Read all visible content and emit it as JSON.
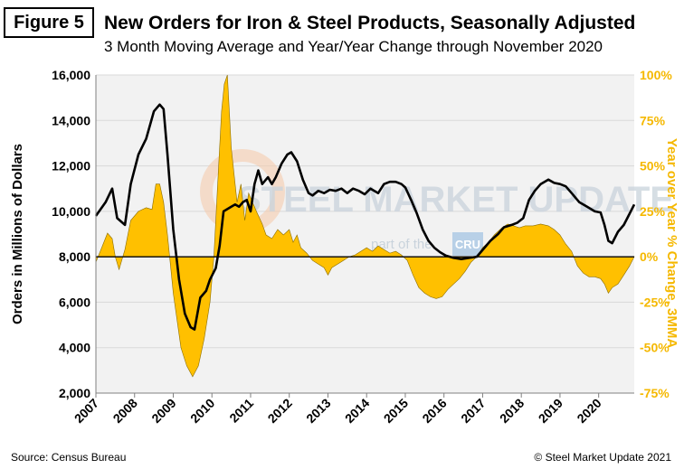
{
  "figure_label": "Figure 5",
  "title": "New Orders for Iron & Steel Products, Seasonally Adjusted",
  "subtitle": "3 Month Moving Average and Year/Year Change through November 2020",
  "source": "Source: Census Bureau",
  "copyright": "© Steel Market Update 2021",
  "watermark": {
    "main": "STEEL MARKET UPDATE",
    "sub_left": "part of the",
    "badge": "CRU",
    "sub_right": "Group"
  },
  "colors": {
    "line": "#000000",
    "area": "#FFC000",
    "right_axis": "#F5B800",
    "grid": "#d9d9d9",
    "plot_bg": "#f2f2f2"
  },
  "chart_data": {
    "type": "line+area",
    "xlabel": "",
    "ylabel": "Orders in Millions of Dollars",
    "y2label": "Year over Year % Change, 3MMA",
    "ylim": [
      2000,
      16000
    ],
    "y_ticks": [
      "2,000",
      "4,000",
      "6,000",
      "8,000",
      "10,000",
      "12,000",
      "14,000",
      "16,000"
    ],
    "y2lim": [
      -75,
      100
    ],
    "y2_ticks": [
      "-75%",
      "-50%",
      "-25%",
      "0%",
      "25%",
      "50%",
      "75%",
      "100%"
    ],
    "x_ticks": [
      "2007",
      "2008",
      "2009",
      "2010",
      "2011",
      "2012",
      "2013",
      "2014",
      "2015",
      "2016",
      "2017",
      "2018",
      "2019",
      "2020"
    ],
    "x_range": [
      2007.0,
      2020.92
    ],
    "grid": true,
    "series": [
      {
        "name": "Orders",
        "axis": "left",
        "type": "line",
        "points": [
          [
            2007.0,
            9800
          ],
          [
            2007.25,
            10400
          ],
          [
            2007.42,
            11000
          ],
          [
            2007.55,
            9700
          ],
          [
            2007.75,
            9400
          ],
          [
            2007.9,
            11200
          ],
          [
            2008.1,
            12500
          ],
          [
            2008.3,
            13200
          ],
          [
            2008.5,
            14400
          ],
          [
            2008.65,
            14700
          ],
          [
            2008.75,
            14500
          ],
          [
            2008.85,
            12500
          ],
          [
            2009.0,
            9200
          ],
          [
            2009.15,
            7000
          ],
          [
            2009.3,
            5500
          ],
          [
            2009.45,
            4900
          ],
          [
            2009.55,
            4800
          ],
          [
            2009.7,
            6200
          ],
          [
            2009.85,
            6500
          ],
          [
            2009.95,
            7000
          ],
          [
            2010.1,
            7500
          ],
          [
            2010.2,
            8500
          ],
          [
            2010.3,
            10000
          ],
          [
            2010.5,
            10200
          ],
          [
            2010.6,
            10300
          ],
          [
            2010.7,
            10200
          ],
          [
            2010.8,
            10400
          ],
          [
            2010.9,
            10500
          ],
          [
            2011.0,
            10000
          ],
          [
            2011.1,
            11200
          ],
          [
            2011.2,
            11800
          ],
          [
            2011.3,
            11200
          ],
          [
            2011.45,
            11500
          ],
          [
            2011.55,
            11200
          ],
          [
            2011.65,
            11500
          ],
          [
            2011.8,
            12100
          ],
          [
            2011.95,
            12500
          ],
          [
            2012.05,
            12600
          ],
          [
            2012.2,
            12200
          ],
          [
            2012.35,
            11400
          ],
          [
            2012.5,
            10800
          ],
          [
            2012.6,
            10700
          ],
          [
            2012.75,
            10900
          ],
          [
            2012.9,
            10800
          ],
          [
            2013.05,
            10950
          ],
          [
            2013.2,
            10900
          ],
          [
            2013.35,
            11000
          ],
          [
            2013.5,
            10800
          ],
          [
            2013.65,
            11000
          ],
          [
            2013.8,
            10900
          ],
          [
            2013.95,
            10750
          ],
          [
            2014.1,
            11000
          ],
          [
            2014.3,
            10800
          ],
          [
            2014.45,
            11200
          ],
          [
            2014.6,
            11300
          ],
          [
            2014.75,
            11300
          ],
          [
            2014.9,
            11200
          ],
          [
            2015.0,
            11050
          ],
          [
            2015.15,
            10500
          ],
          [
            2015.3,
            9900
          ],
          [
            2015.45,
            9200
          ],
          [
            2015.6,
            8700
          ],
          [
            2015.75,
            8400
          ],
          [
            2015.9,
            8200
          ],
          [
            2016.05,
            8050
          ],
          [
            2016.25,
            7950
          ],
          [
            2016.45,
            7900
          ],
          [
            2016.65,
            7950
          ],
          [
            2016.85,
            8000
          ],
          [
            2017.0,
            8300
          ],
          [
            2017.2,
            8700
          ],
          [
            2017.4,
            9000
          ],
          [
            2017.55,
            9300
          ],
          [
            2017.75,
            9400
          ],
          [
            2017.9,
            9500
          ],
          [
            2018.05,
            9700
          ],
          [
            2018.2,
            10500
          ],
          [
            2018.35,
            10900
          ],
          [
            2018.5,
            11200
          ],
          [
            2018.7,
            11400
          ],
          [
            2018.85,
            11250
          ],
          [
            2019.0,
            11200
          ],
          [
            2019.15,
            11100
          ],
          [
            2019.3,
            10800
          ],
          [
            2019.5,
            10400
          ],
          [
            2019.7,
            10200
          ],
          [
            2019.9,
            10000
          ],
          [
            2020.05,
            9950
          ],
          [
            2020.15,
            9400
          ],
          [
            2020.25,
            8700
          ],
          [
            2020.35,
            8600
          ],
          [
            2020.5,
            9100
          ],
          [
            2020.65,
            9400
          ],
          [
            2020.8,
            9900
          ],
          [
            2020.92,
            10300
          ]
        ]
      },
      {
        "name": "Y/Y % Change",
        "axis": "right",
        "type": "area",
        "points": [
          [
            2007.0,
            -3
          ],
          [
            2007.15,
            5
          ],
          [
            2007.3,
            13
          ],
          [
            2007.42,
            10
          ],
          [
            2007.5,
            0
          ],
          [
            2007.6,
            -7
          ],
          [
            2007.75,
            4
          ],
          [
            2007.9,
            20
          ],
          [
            2008.1,
            25
          ],
          [
            2008.3,
            27
          ],
          [
            2008.45,
            26
          ],
          [
            2008.55,
            40
          ],
          [
            2008.65,
            40
          ],
          [
            2008.75,
            30
          ],
          [
            2008.85,
            12
          ],
          [
            2009.0,
            -20
          ],
          [
            2009.2,
            -50
          ],
          [
            2009.35,
            -60
          ],
          [
            2009.5,
            -66
          ],
          [
            2009.65,
            -60
          ],
          [
            2009.8,
            -45
          ],
          [
            2009.95,
            -25
          ],
          [
            2010.05,
            0
          ],
          [
            2010.15,
            40
          ],
          [
            2010.25,
            80
          ],
          [
            2010.32,
            95
          ],
          [
            2010.4,
            100
          ],
          [
            2010.5,
            60
          ],
          [
            2010.65,
            30
          ],
          [
            2010.75,
            40
          ],
          [
            2010.85,
            20
          ],
          [
            2010.95,
            35
          ],
          [
            2011.05,
            30
          ],
          [
            2011.15,
            25
          ],
          [
            2011.3,
            18
          ],
          [
            2011.4,
            12
          ],
          [
            2011.55,
            10
          ],
          [
            2011.7,
            15
          ],
          [
            2011.85,
            12
          ],
          [
            2012.0,
            15
          ],
          [
            2012.1,
            8
          ],
          [
            2012.2,
            12
          ],
          [
            2012.3,
            5
          ],
          [
            2012.45,
            2
          ],
          [
            2012.6,
            -2
          ],
          [
            2012.75,
            -4
          ],
          [
            2012.9,
            -6
          ],
          [
            2013.0,
            -10
          ],
          [
            2013.1,
            -6
          ],
          [
            2013.25,
            -4
          ],
          [
            2013.4,
            -2
          ],
          [
            2013.55,
            0
          ],
          [
            2013.7,
            1
          ],
          [
            2013.85,
            3
          ],
          [
            2014.0,
            5
          ],
          [
            2014.15,
            3
          ],
          [
            2014.3,
            6
          ],
          [
            2014.45,
            4
          ],
          [
            2014.6,
            2
          ],
          [
            2014.75,
            3
          ],
          [
            2014.9,
            1
          ],
          [
            2015.05,
            -2
          ],
          [
            2015.2,
            -10
          ],
          [
            2015.35,
            -17
          ],
          [
            2015.5,
            -20
          ],
          [
            2015.65,
            -22
          ],
          [
            2015.8,
            -23
          ],
          [
            2015.95,
            -22
          ],
          [
            2016.1,
            -18
          ],
          [
            2016.25,
            -15
          ],
          [
            2016.4,
            -12
          ],
          [
            2016.55,
            -8
          ],
          [
            2016.7,
            -3
          ],
          [
            2016.85,
            0
          ],
          [
            2017.0,
            5
          ],
          [
            2017.15,
            8
          ],
          [
            2017.3,
            12
          ],
          [
            2017.5,
            16
          ],
          [
            2017.65,
            18
          ],
          [
            2017.8,
            17
          ],
          [
            2017.95,
            16
          ],
          [
            2018.1,
            17
          ],
          [
            2018.3,
            17
          ],
          [
            2018.5,
            18
          ],
          [
            2018.7,
            17
          ],
          [
            2018.85,
            15
          ],
          [
            2019.0,
            12
          ],
          [
            2019.15,
            7
          ],
          [
            2019.3,
            3
          ],
          [
            2019.45,
            -5
          ],
          [
            2019.6,
            -9
          ],
          [
            2019.75,
            -11
          ],
          [
            2019.9,
            -11
          ],
          [
            2020.05,
            -12
          ],
          [
            2020.15,
            -15
          ],
          [
            2020.25,
            -20
          ],
          [
            2020.35,
            -17
          ],
          [
            2020.5,
            -15
          ],
          [
            2020.65,
            -10
          ],
          [
            2020.8,
            -5
          ],
          [
            2020.92,
            0
          ]
        ]
      }
    ]
  }
}
